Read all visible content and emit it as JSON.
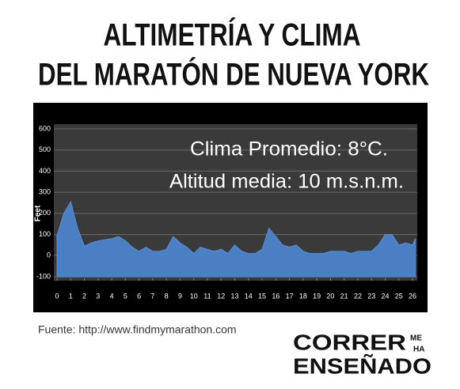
{
  "chart_data": {
    "type": "area",
    "title": [
      "ALTIMETRÍA Y CLIMA",
      "DEL MARATÓN DE NUEVA YORK"
    ],
    "annotations": [
      "Clima Promedio: 8°C.",
      "Altitud media: 10 m.s.n.m."
    ],
    "y_label": "Feet",
    "x": [
      0,
      0.5,
      1,
      1.5,
      2,
      2.5,
      3,
      3.5,
      4,
      4.5,
      5,
      5.5,
      6,
      6.5,
      7,
      7.5,
      8,
      8.5,
      9,
      9.5,
      10,
      10.5,
      11,
      11.5,
      12,
      12.5,
      13,
      13.5,
      14,
      14.5,
      15,
      15.5,
      16,
      16.5,
      17,
      17.5,
      18,
      18.5,
      19,
      19.5,
      20,
      20.5,
      21,
      21.5,
      22,
      22.5,
      23,
      23.5,
      24,
      24.5,
      25,
      25.5,
      26,
      26.2
    ],
    "y": [
      95,
      200,
      255,
      130,
      45,
      60,
      70,
      75,
      80,
      90,
      70,
      40,
      20,
      40,
      20,
      20,
      30,
      90,
      60,
      40,
      10,
      40,
      30,
      20,
      30,
      10,
      50,
      20,
      10,
      10,
      30,
      130,
      90,
      50,
      40,
      50,
      20,
      10,
      10,
      10,
      20,
      20,
      20,
      10,
      20,
      20,
      20,
      50,
      100,
      100,
      50,
      60,
      50,
      80
    ],
    "color": "#4a7fc4",
    "xlim": [
      0,
      26.2
    ],
    "xticks": [
      0,
      1,
      2,
      3,
      4,
      5,
      6,
      7,
      8,
      9,
      10,
      11,
      12,
      13,
      14,
      15,
      16,
      17,
      18,
      19,
      20,
      21,
      22,
      23,
      24,
      25,
      26
    ],
    "ylim": [
      -100,
      600
    ],
    "yticks": [
      -100,
      0,
      100,
      200,
      300,
      400,
      500,
      600
    ],
    "grid": true
  },
  "source": "Fuente: http://www.findmymarathon.com",
  "logo": {
    "line1": "CORRER",
    "small1": "ME",
    "small2": "HA",
    "line2": "ENSEÑADO"
  }
}
